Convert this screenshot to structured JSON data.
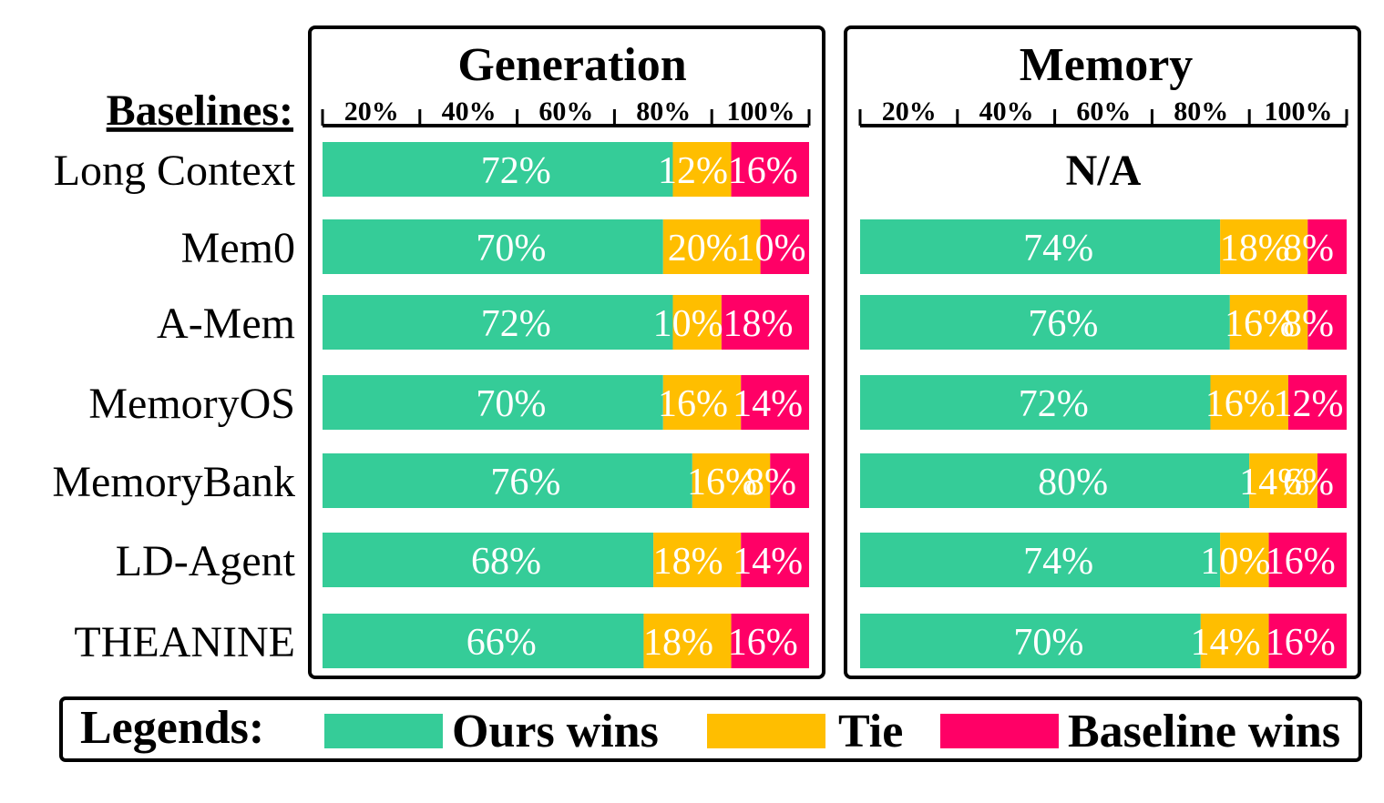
{
  "chart_data": {
    "type": "bar",
    "orientation": "horizontal-stacked",
    "rows_header": "Baselines:",
    "categories": [
      "Long Context",
      "Mem0",
      "A-Mem",
      "MemoryOS",
      "MemoryBank",
      "LD-Agent",
      "THEANINE"
    ],
    "ticks": [
      "20%",
      "40%",
      "60%",
      "80%",
      "100%"
    ],
    "xlim": [
      0,
      100
    ],
    "segment_names": [
      "Ours wins",
      "Tie",
      "Baseline wins"
    ],
    "colors": {
      "ours": "#35cc98",
      "tie": "#ffbe00",
      "baseline": "#ff0066"
    },
    "panels": [
      {
        "title": "Generation",
        "series": [
          {
            "name": "Ours wins",
            "values": [
              72,
              70,
              72,
              70,
              76,
              68,
              66
            ]
          },
          {
            "name": "Tie",
            "values": [
              12,
              20,
              10,
              16,
              16,
              18,
              18
            ]
          },
          {
            "name": "Baseline wins",
            "values": [
              16,
              10,
              18,
              14,
              8,
              14,
              16
            ]
          }
        ],
        "labels": [
          [
            "72%",
            "12%",
            "16%"
          ],
          [
            "70%",
            "20%",
            "10%"
          ],
          [
            "72%",
            "10%",
            "18%"
          ],
          [
            "70%",
            "16%",
            "14%"
          ],
          [
            "76%",
            "16%",
            "8%"
          ],
          [
            "68%",
            "18%",
            "14%"
          ],
          [
            "66%",
            "18%",
            "16%"
          ]
        ]
      },
      {
        "title": "Memory",
        "na_text": "N/A",
        "series": [
          {
            "name": "Ours wins",
            "values": [
              null,
              74,
              76,
              72,
              80,
              74,
              70
            ]
          },
          {
            "name": "Tie",
            "values": [
              null,
              18,
              16,
              16,
              14,
              10,
              14
            ]
          },
          {
            "name": "Baseline wins",
            "values": [
              null,
              8,
              8,
              12,
              6,
              16,
              16
            ]
          }
        ],
        "labels": [
          null,
          [
            "74%",
            "18%",
            "8%"
          ],
          [
            "76%",
            "16%",
            "8%"
          ],
          [
            "72%",
            "16%",
            "12%"
          ],
          [
            "80%",
            "14%",
            "6%"
          ],
          [
            "74%",
            "10%",
            "16%"
          ],
          [
            "70%",
            "14%",
            "16%"
          ]
        ]
      }
    ],
    "legend": {
      "title": "Legends:",
      "items": [
        "Ours wins",
        "Tie",
        "Baseline wins"
      ],
      "placement": "bottom"
    }
  }
}
